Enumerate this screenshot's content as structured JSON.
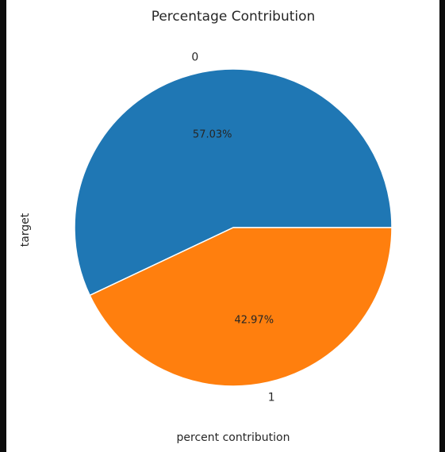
{
  "chart_data": {
    "type": "pie",
    "title": "Percentage Contribution",
    "xlabel": "percent contribution",
    "ylabel": "target",
    "categories": [
      "0",
      "1"
    ],
    "values": [
      57.03,
      42.97
    ],
    "data_labels": [
      "57.03%",
      "42.97%"
    ],
    "colors": [
      "#1f77b4",
      "#ff7f0e"
    ],
    "start_angle_deg": 0,
    "direction": "counterclockwise",
    "legend": "none",
    "grid": false
  }
}
